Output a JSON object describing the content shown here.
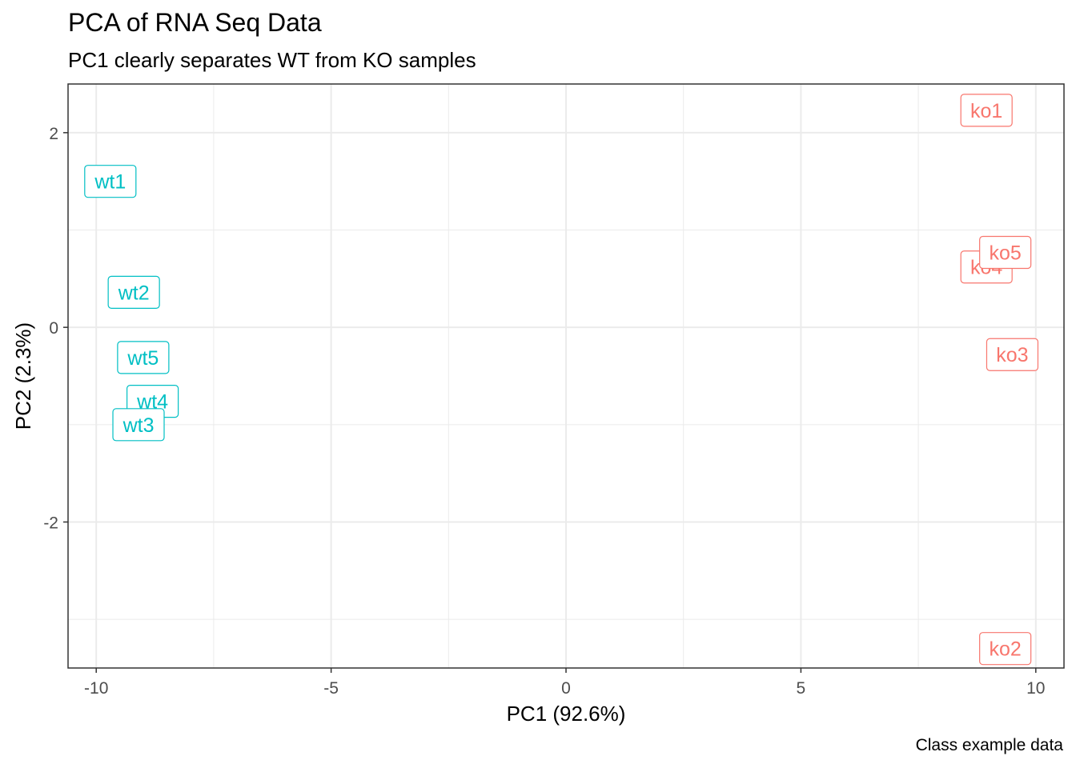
{
  "chart_data": {
    "type": "scatter",
    "title": "PCA of RNA Seq Data",
    "subtitle": "PC1 clearly separates WT from KO samples",
    "caption": "Class example data",
    "xlabel": "PC1 (92.6%)",
    "ylabel": "PC2 (2.3%)",
    "xlim": [
      -10.6,
      10.6
    ],
    "ylim": [
      -3.5,
      2.5
    ],
    "xticks": [
      -10,
      -5,
      0,
      5,
      10
    ],
    "xtick_labels": [
      "-10",
      "-5",
      "0",
      "5",
      "10"
    ],
    "yticks": [
      -2,
      0,
      2
    ],
    "ytick_labels": [
      "-2",
      "0",
      "2"
    ],
    "grid": true,
    "legend": "none",
    "colors": {
      "ko": "#F8766D",
      "wt": "#00BFC4",
      "grid": "#ebebeb",
      "panel_border": "#333333"
    },
    "points": [
      {
        "label": "wt1",
        "group": "wt",
        "x": -9.7,
        "y": 1.5
      },
      {
        "label": "wt2",
        "group": "wt",
        "x": -9.2,
        "y": 0.36
      },
      {
        "label": "wt5",
        "group": "wt",
        "x": -9.0,
        "y": -0.31
      },
      {
        "label": "wt4",
        "group": "wt",
        "x": -8.8,
        "y": -0.76
      },
      {
        "label": "wt3",
        "group": "wt",
        "x": -9.1,
        "y": -1.0
      },
      {
        "label": "ko1",
        "group": "ko",
        "x": 8.95,
        "y": 2.23
      },
      {
        "label": "ko4",
        "group": "ko",
        "x": 8.95,
        "y": 0.62
      },
      {
        "label": "ko5",
        "group": "ko",
        "x": 9.35,
        "y": 0.77
      },
      {
        "label": "ko3",
        "group": "ko",
        "x": 9.5,
        "y": -0.28
      },
      {
        "label": "ko2",
        "group": "ko",
        "x": 9.35,
        "y": -3.3
      }
    ]
  }
}
